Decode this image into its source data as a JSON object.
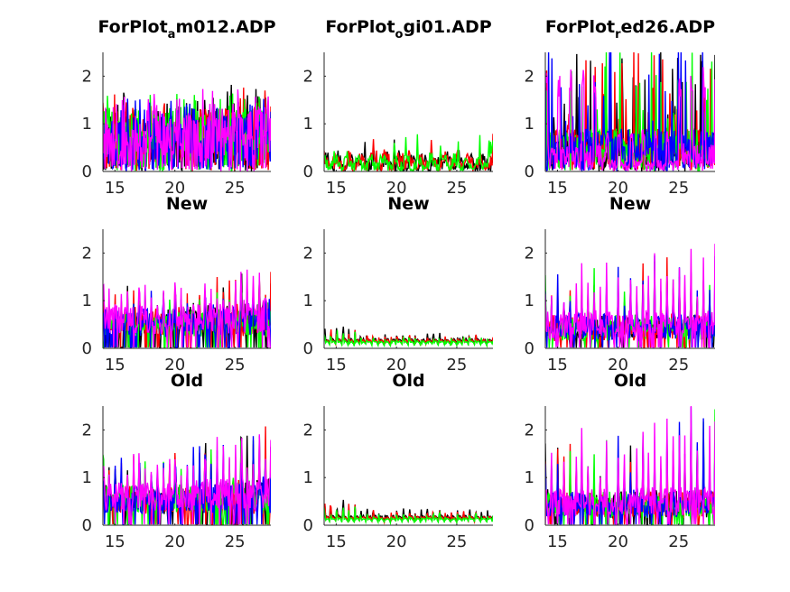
{
  "chart_data": [
    {
      "type": "line",
      "title_main": "ForPlot",
      "title_sub": "a",
      "title_rest": "m012.ADP",
      "row": 0,
      "col": 0,
      "xlim": [
        14,
        28
      ],
      "ylim": [
        0,
        2.5
      ],
      "xticks": [
        15,
        20,
        25
      ],
      "yticks": [
        0,
        1,
        2
      ],
      "pattern": "dense",
      "peak": 1.7,
      "trend": 0.15,
      "series": [
        {
          "name": "black",
          "color": "#000000"
        },
        {
          "name": "red",
          "color": "#ff0000"
        },
        {
          "name": "green",
          "color": "#00ff00"
        },
        {
          "name": "blue",
          "color": "#0000ff"
        },
        {
          "name": "magenta",
          "color": "#ff00ff"
        }
      ]
    },
    {
      "type": "line",
      "title_main": "ForPlot",
      "title_sub": "o",
      "title_rest": "gi01.ADP",
      "row": 0,
      "col": 1,
      "xlim": [
        14,
        28
      ],
      "ylim": [
        0,
        2.5
      ],
      "xticks": [
        15,
        20,
        25
      ],
      "yticks": [
        0,
        1,
        2
      ],
      "pattern": "low",
      "peak": 0.6,
      "trend": 0.1,
      "series": [
        {
          "name": "black",
          "color": "#000000"
        },
        {
          "name": "red",
          "color": "#ff0000"
        },
        {
          "name": "green",
          "color": "#00ff00"
        }
      ]
    },
    {
      "type": "line",
      "title_main": "ForPlot",
      "title_sub": "r",
      "title_rest": "ed26.ADP",
      "row": 0,
      "col": 2,
      "xlim": [
        14,
        28
      ],
      "ylim": [
        0,
        2.5
      ],
      "xticks": [
        15,
        20,
        25
      ],
      "yticks": [
        0,
        1,
        2
      ],
      "pattern": "spiky",
      "peak": 2.2,
      "trend": 0.1,
      "series": [
        {
          "name": "black",
          "color": "#000000"
        },
        {
          "name": "red",
          "color": "#ff0000"
        },
        {
          "name": "green",
          "color": "#00ff00"
        },
        {
          "name": "blue",
          "color": "#0000ff"
        },
        {
          "name": "magenta",
          "color": "#ff00ff"
        }
      ]
    },
    {
      "type": "line",
      "title_main": "New",
      "row": 1,
      "col": 0,
      "xlim": [
        14,
        28
      ],
      "ylim": [
        0,
        2.5
      ],
      "xticks": [
        15,
        20,
        25
      ],
      "yticks": [
        0,
        1,
        2
      ],
      "pattern": "periodic",
      "peak": 1.4,
      "trend": 0.25,
      "series": [
        {
          "name": "black",
          "color": "#000000"
        },
        {
          "name": "red",
          "color": "#ff0000"
        },
        {
          "name": "green",
          "color": "#00ff00"
        },
        {
          "name": "blue",
          "color": "#0000ff"
        },
        {
          "name": "magenta",
          "color": "#ff00ff"
        }
      ]
    },
    {
      "type": "line",
      "title_main": "New",
      "row": 1,
      "col": 1,
      "xlim": [
        14,
        28
      ],
      "ylim": [
        0,
        2.5
      ],
      "xticks": [
        15,
        20,
        25
      ],
      "yticks": [
        0,
        1,
        2
      ],
      "pattern": "lowperiodic",
      "peak": 0.4,
      "trend": 0.0,
      "series": [
        {
          "name": "black",
          "color": "#000000"
        },
        {
          "name": "red",
          "color": "#ff0000"
        },
        {
          "name": "green",
          "color": "#00ff00"
        }
      ]
    },
    {
      "type": "line",
      "title_main": "New",
      "row": 1,
      "col": 2,
      "xlim": [
        14,
        28
      ],
      "ylim": [
        0,
        2.5
      ],
      "xticks": [
        15,
        20,
        25
      ],
      "yticks": [
        0,
        1,
        2
      ],
      "pattern": "periodicspiky",
      "peak": 1.9,
      "trend": 0.3,
      "series": [
        {
          "name": "black",
          "color": "#000000"
        },
        {
          "name": "red",
          "color": "#ff0000"
        },
        {
          "name": "green",
          "color": "#00ff00"
        },
        {
          "name": "blue",
          "color": "#0000ff"
        },
        {
          "name": "magenta",
          "color": "#ff00ff"
        }
      ]
    },
    {
      "type": "line",
      "title_main": "Old",
      "row": 2,
      "col": 0,
      "xlim": [
        14,
        28
      ],
      "ylim": [
        0,
        2.5
      ],
      "xticks": [
        15,
        20,
        25
      ],
      "yticks": [
        0,
        1,
        2
      ],
      "pattern": "periodic",
      "peak": 1.6,
      "trend": 0.35,
      "series": [
        {
          "name": "black",
          "color": "#000000"
        },
        {
          "name": "red",
          "color": "#ff0000"
        },
        {
          "name": "green",
          "color": "#00ff00"
        },
        {
          "name": "blue",
          "color": "#0000ff"
        },
        {
          "name": "magenta",
          "color": "#ff00ff"
        }
      ]
    },
    {
      "type": "line",
      "title_main": "Old",
      "row": 2,
      "col": 1,
      "xlim": [
        14,
        28
      ],
      "ylim": [
        0,
        2.5
      ],
      "xticks": [
        15,
        20,
        25
      ],
      "yticks": [
        0,
        1,
        2
      ],
      "pattern": "lowperiodic",
      "peak": 0.45,
      "trend": 0.0,
      "series": [
        {
          "name": "black",
          "color": "#000000"
        },
        {
          "name": "red",
          "color": "#ff0000"
        },
        {
          "name": "green",
          "color": "#00ff00"
        }
      ]
    },
    {
      "type": "line",
      "title_main": "Old",
      "row": 2,
      "col": 2,
      "xlim": [
        14,
        28
      ],
      "ylim": [
        0,
        2.5
      ],
      "xticks": [
        15,
        20,
        25
      ],
      "yticks": [
        0,
        1,
        2
      ],
      "pattern": "periodicspiky",
      "peak": 2.1,
      "trend": 0.35,
      "series": [
        {
          "name": "black",
          "color": "#000000"
        },
        {
          "name": "red",
          "color": "#ff0000"
        },
        {
          "name": "green",
          "color": "#00ff00"
        },
        {
          "name": "blue",
          "color": "#0000ff"
        },
        {
          "name": "magenta",
          "color": "#ff00ff"
        }
      ]
    }
  ]
}
